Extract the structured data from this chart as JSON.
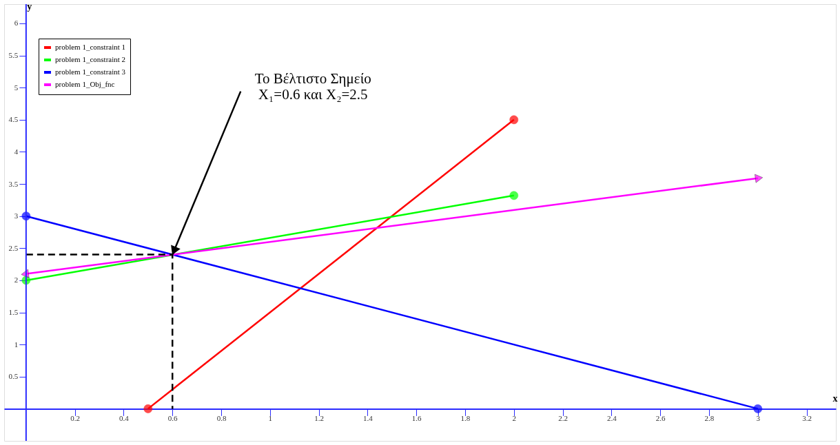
{
  "chart_data": {
    "type": "line",
    "xlabel": "x",
    "ylabel": "y",
    "xlim": [
      -0.09,
      3.32
    ],
    "ylim": [
      -0.5,
      6.3
    ],
    "xticks": [
      0.2,
      0.4,
      0.6,
      0.8,
      1,
      1.2,
      1.4,
      1.6,
      1.8,
      2,
      2.2,
      2.4,
      2.6,
      2.8,
      3,
      3.2
    ],
    "yticks": [
      0.5,
      1,
      1.5,
      2,
      2.5,
      3,
      3.5,
      4,
      4.5,
      5,
      5.5,
      6
    ],
    "grid": false,
    "ref_lines": [
      {
        "axis": "x",
        "value": 0,
        "color": "#2a2aff"
      }
    ],
    "legend": "top left",
    "line_style": "solid",
    "series": [
      {
        "name": "problem 1_constraint 1",
        "color": "#ff0000",
        "x": [
          0.5,
          2
        ],
        "values": [
          0,
          4.5
        ],
        "marker": "circle"
      },
      {
        "name": "problem 1_constraint 2",
        "color": "#00ff00",
        "x": [
          0,
          2
        ],
        "values": [
          2,
          3.32
        ],
        "marker": "circle"
      },
      {
        "name": "problem 1_constraint 3",
        "color": "#0000ff",
        "x": [
          0,
          3
        ],
        "values": [
          3,
          0
        ],
        "marker": "circle"
      },
      {
        "name": "problem 1_Obj_fnc",
        "color": "#ff00ff",
        "x": [
          0,
          3
        ],
        "values": [
          2.1,
          3.59
        ],
        "marker": "triangle"
      },
      {
        "color": "#000000",
        "x": [
          0,
          0.6,
          0.6
        ],
        "values": [
          2.4,
          2.4,
          0
        ],
        "marker": "none",
        "line_style": "dashed"
      }
    ],
    "annotations": [
      {
        "text": "Το Βέλτιστο Σημείο\nX₁=0.6 και X₂=2.5",
        "x": 0.6,
        "y": 2.4
      }
    ]
  }
}
